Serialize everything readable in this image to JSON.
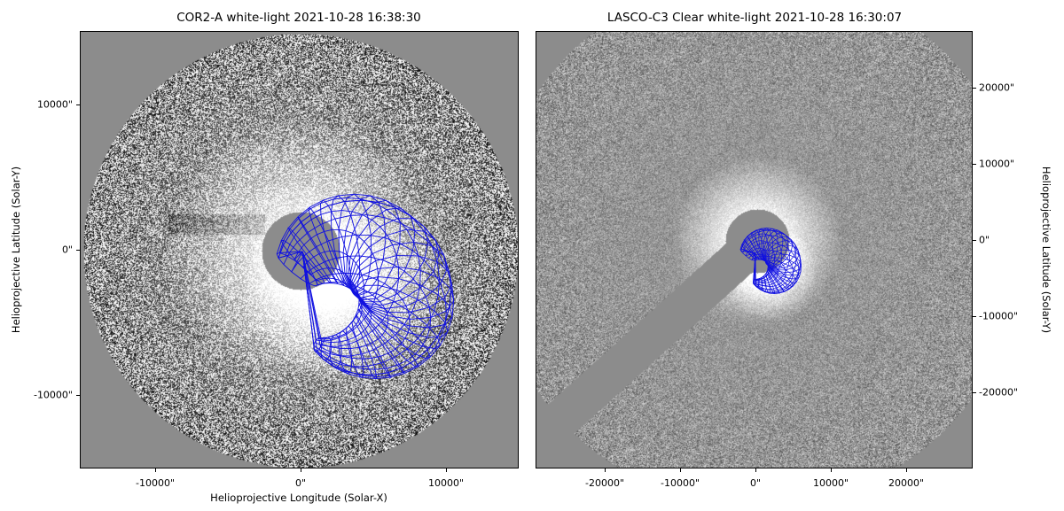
{
  "figure": {
    "left_panel": {
      "title": "COR2-A white-light 2021-10-28 16:38:30",
      "xlabel": "Helioprojective Longitude (Solar-X)",
      "ylabel": "Helioprojective Latitude (Solar-Y)",
      "x_ticks": [
        "-10000\"",
        "0\"",
        "10000\""
      ],
      "y_ticks": [
        "10000\"",
        "0\"",
        "-10000\""
      ],
      "x_tick_values": [
        -10000,
        0,
        10000
      ],
      "y_tick_values": [
        10000,
        0,
        -10000
      ],
      "xlim": [
        -15000,
        15000
      ],
      "ylim": [
        -15000,
        15000
      ]
    },
    "right_panel": {
      "title": "LASCO-C3 Clear white-light 2021-10-28 16:30:07",
      "ylabel": "Helioprojective Latitude (Solar-Y)",
      "x_ticks": [
        "-20000\"",
        "-10000\"",
        "0\"",
        "10000\"",
        "20000\""
      ],
      "y_ticks": [
        "20000\"",
        "10000\"",
        "0\"",
        "-10000\"",
        "-20000\""
      ],
      "x_tick_values": [
        -20000,
        -10000,
        0,
        10000,
        20000
      ],
      "y_tick_values": [
        20000,
        10000,
        0,
        -10000,
        -20000
      ],
      "xlim": [
        -28800,
        28800
      ],
      "ylim": [
        -28800,
        28800
      ]
    },
    "colors": {
      "background": "#8c8c8c",
      "mesh": "#1010e0",
      "occulter": "#8c8c8c"
    }
  }
}
